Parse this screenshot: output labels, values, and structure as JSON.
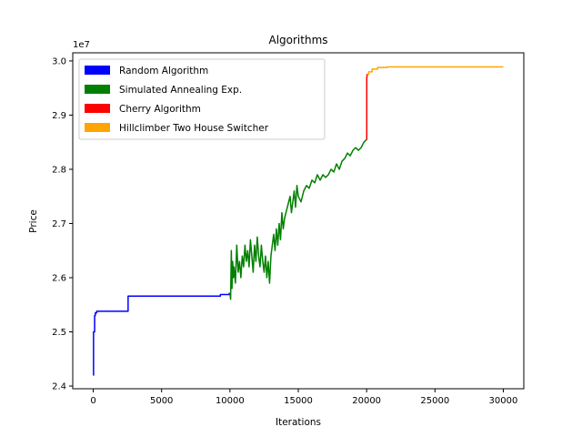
{
  "chart_data": {
    "type": "line",
    "title": "Algorithms",
    "xlabel": "Iterations",
    "ylabel": "Price",
    "y_offset_label": "1e7",
    "y_multiplier": 10000000,
    "xlim": [
      -1500,
      31500
    ],
    "ylim": [
      2.395,
      3.015
    ],
    "x_ticks": [
      0,
      5000,
      10000,
      15000,
      20000,
      25000,
      30000
    ],
    "x_tick_labels": [
      "0",
      "5000",
      "10000",
      "15000",
      "20000",
      "25000",
      "30000"
    ],
    "y_ticks": [
      2.4,
      2.5,
      2.6,
      2.7,
      2.8,
      2.9,
      3.0
    ],
    "y_tick_labels": [
      "2.4",
      "2.5",
      "2.6",
      "2.7",
      "2.8",
      "2.9",
      "3.0"
    ],
    "grid": false,
    "legend_position": "top-left",
    "series": [
      {
        "name": "Random Algorithm",
        "color": "#0000ff",
        "x": [
          0,
          20,
          20,
          100,
          100,
          150,
          150,
          250,
          250,
          2550,
          2550,
          9300,
          9300,
          9950,
          9950,
          10000
        ],
        "y": [
          2.42,
          2.42,
          2.5,
          2.5,
          2.53,
          2.53,
          2.535,
          2.535,
          2.538,
          2.538,
          2.566,
          2.566,
          2.569,
          2.569,
          2.571,
          2.571
        ]
      },
      {
        "name": "Simulated Annealing Exp.",
        "color": "#008000",
        "x": [
          10000,
          10050,
          10100,
          10150,
          10200,
          10250,
          10300,
          10400,
          10500,
          10600,
          10700,
          10800,
          10900,
          11000,
          11100,
          11200,
          11300,
          11400,
          11500,
          11600,
          11700,
          11800,
          11900,
          12000,
          12100,
          12200,
          12300,
          12400,
          12500,
          12600,
          12700,
          12800,
          12900,
          13000,
          13100,
          13200,
          13300,
          13400,
          13500,
          13600,
          13700,
          13800,
          13900,
          14000,
          14200,
          14400,
          14500,
          14600,
          14700,
          14800,
          14900,
          15000,
          15200,
          15400,
          15600,
          15800,
          16000,
          16200,
          16400,
          16600,
          16800,
          17000,
          17200,
          17400,
          17600,
          17800,
          18000,
          18200,
          18400,
          18600,
          18800,
          19000,
          19200,
          19400,
          19600,
          19800,
          20000
        ],
        "y": [
          2.571,
          2.56,
          2.65,
          2.58,
          2.63,
          2.6,
          2.62,
          2.59,
          2.66,
          2.61,
          2.63,
          2.6,
          2.64,
          2.62,
          2.66,
          2.63,
          2.65,
          2.62,
          2.67,
          2.64,
          2.61,
          2.66,
          2.63,
          2.675,
          2.64,
          2.62,
          2.66,
          2.63,
          2.61,
          2.64,
          2.6,
          2.63,
          2.59,
          2.64,
          2.66,
          2.68,
          2.65,
          2.69,
          2.66,
          2.7,
          2.67,
          2.72,
          2.69,
          2.71,
          2.73,
          2.75,
          2.72,
          2.74,
          2.76,
          2.73,
          2.77,
          2.75,
          2.74,
          2.76,
          2.77,
          2.765,
          2.78,
          2.775,
          2.79,
          2.78,
          2.79,
          2.785,
          2.79,
          2.8,
          2.795,
          2.81,
          2.8,
          2.815,
          2.82,
          2.83,
          2.825,
          2.835,
          2.84,
          2.835,
          2.84,
          2.85,
          2.855
        ]
      },
      {
        "name": "Cherry Algorithm",
        "color": "#ff0000",
        "x": [
          20000,
          20010,
          20010,
          20030,
          20030,
          20050
        ],
        "y": [
          2.855,
          2.855,
          2.97,
          2.97,
          2.975,
          2.975
        ]
      },
      {
        "name": "Hillclimber Two House Switcher",
        "color": "#ffa500",
        "x": [
          20050,
          20150,
          20150,
          20400,
          20400,
          20800,
          20800,
          21500,
          21500,
          30000
        ],
        "y": [
          2.975,
          2.975,
          2.98,
          2.98,
          2.985,
          2.985,
          2.988,
          2.988,
          2.989,
          2.989
        ]
      }
    ]
  }
}
